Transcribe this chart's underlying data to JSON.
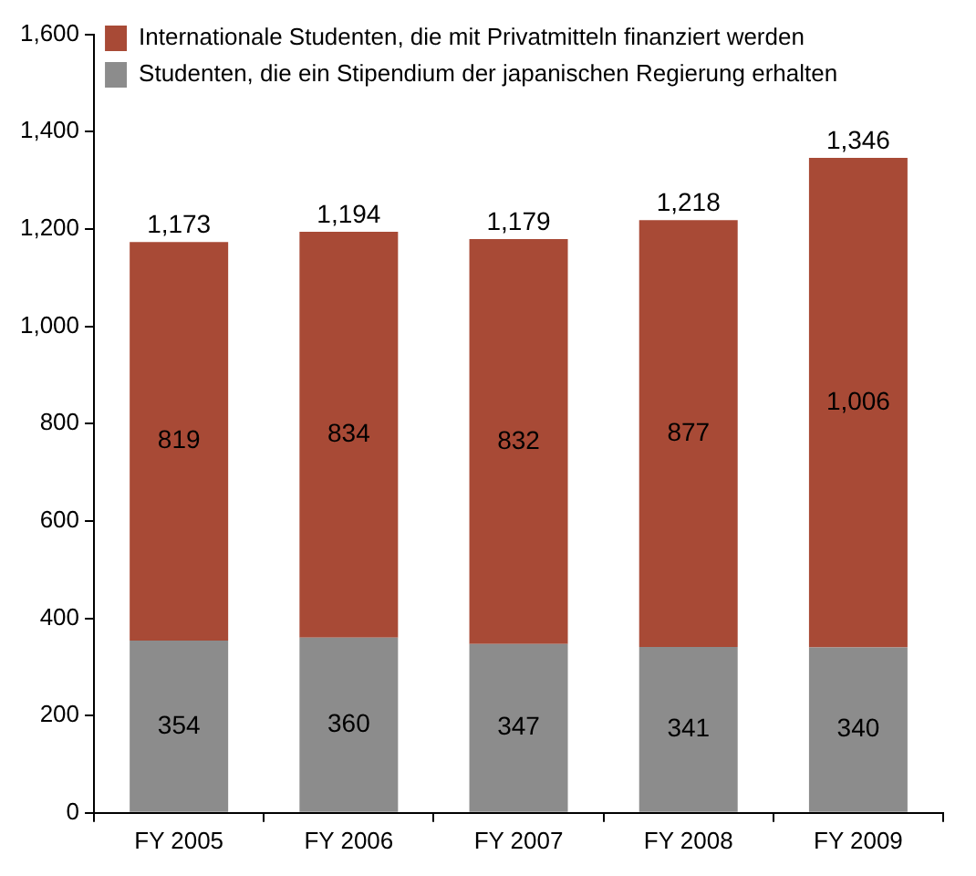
{
  "chart_data": {
    "type": "bar",
    "stacked": true,
    "categories": [
      "FY 2005",
      "FY 2006",
      "FY 2007",
      "FY 2008",
      "FY 2009"
    ],
    "series": [
      {
        "name": "Studenten, die ein Stipendium der japanischen Regierung erhalten",
        "color": "#8c8c8c",
        "values": [
          354,
          360,
          347,
          341,
          340
        ]
      },
      {
        "name": "Internationale Studenten, die mit Privatmitteln finanziert werden",
        "color": "#a84a36",
        "values": [
          819,
          834,
          832,
          877,
          1006
        ],
        "value_labels": [
          "819",
          "834",
          "832",
          "877",
          "1,006"
        ]
      }
    ],
    "totals": [
      "1,173",
      "1,194",
      "1,179",
      "1,218",
      "1,346"
    ],
    "data_labels": true,
    "ylim": [
      0,
      1600
    ],
    "yticks": [
      0,
      200,
      400,
      600,
      800,
      {
        "value": 1000,
        "label": "1,000"
      },
      {
        "value": 1200,
        "label": "1,200"
      },
      {
        "value": 1400,
        "label": "1,400"
      },
      {
        "value": 1600,
        "label": "1,600"
      }
    ],
    "grid": false,
    "legend": "top left"
  }
}
